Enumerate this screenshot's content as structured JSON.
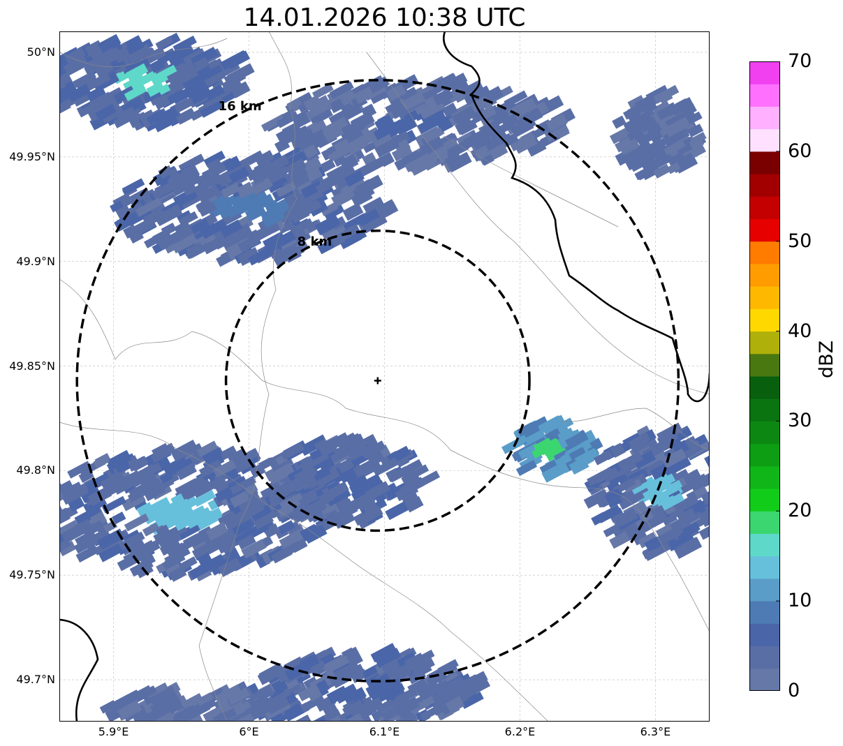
{
  "title": "14.01.2026 10:38 UTC",
  "map": {
    "lon_range": [
      5.86,
      6.34
    ],
    "lat_range": [
      49.68,
      50.01
    ],
    "center": {
      "lon": 6.095,
      "lat": 49.843
    },
    "rings": [
      {
        "label": "8 km",
        "radius_lon": 0.112,
        "radius_lat": 0.0717
      },
      {
        "label": "16 km",
        "radius_lon": 0.222,
        "radius_lat": 0.1437
      }
    ],
    "lat_ticks": [
      {
        "value": 49.7,
        "label": "49.7°N"
      },
      {
        "value": 49.75,
        "label": "49.75°N"
      },
      {
        "value": 49.8,
        "label": "49.8°N"
      },
      {
        "value": 49.85,
        "label": "49.85°N"
      },
      {
        "value": 49.9,
        "label": "49.9°N"
      },
      {
        "value": 49.95,
        "label": "49.95°N"
      },
      {
        "value": 50.0,
        "label": "50°N"
      }
    ],
    "lon_ticks": [
      {
        "value": 5.9,
        "label": "5.9°E"
      },
      {
        "value": 6.0,
        "label": "6°E"
      },
      {
        "value": 6.1,
        "label": "6.1°E"
      },
      {
        "value": 6.2,
        "label": "6.2°E"
      },
      {
        "value": 6.3,
        "label": "6.3°E"
      }
    ],
    "grid": true,
    "echo_clusters": [
      {
        "lon": 5.92,
        "lat": 49.985,
        "dlon": 0.08,
        "dlat": 0.02,
        "dbz": 5,
        "core_dbz": 17
      },
      {
        "lon": 6.12,
        "lat": 49.965,
        "dlon": 0.11,
        "dlat": 0.02,
        "dbz": 3,
        "core_dbz": 7
      },
      {
        "lon": 6.0,
        "lat": 49.925,
        "dlon": 0.1,
        "dlat": 0.025,
        "dbz": 4,
        "core_dbz": 8
      },
      {
        "lon": 6.3,
        "lat": 49.96,
        "dlon": 0.03,
        "dlat": 0.02,
        "dbz": 3,
        "core_dbz": 3
      },
      {
        "lon": 5.95,
        "lat": 49.78,
        "dlon": 0.11,
        "dlat": 0.03,
        "dbz": 4,
        "core_dbz": 14
      },
      {
        "lon": 6.07,
        "lat": 49.795,
        "dlon": 0.06,
        "dlat": 0.02,
        "dbz": 4,
        "core_dbz": 6
      },
      {
        "lon": 6.22,
        "lat": 49.81,
        "dlon": 0.03,
        "dlat": 0.012,
        "dbz": 10,
        "core_dbz": 19
      },
      {
        "lon": 6.3,
        "lat": 49.79,
        "dlon": 0.05,
        "dlat": 0.03,
        "dbz": 4,
        "core_dbz": 14
      },
      {
        "lon": 6.08,
        "lat": 49.695,
        "dlon": 0.09,
        "dlat": 0.018,
        "dbz": 4,
        "core_dbz": 7
      },
      {
        "lon": 5.95,
        "lat": 49.685,
        "dlon": 0.06,
        "dlat": 0.01,
        "dbz": 3,
        "core_dbz": 3
      }
    ]
  },
  "colorbar": {
    "title": "dBZ",
    "min": 0,
    "max": 70,
    "step": 2.5,
    "tick_labels": [
      "0",
      "10",
      "20",
      "30",
      "40",
      "50",
      "60",
      "70"
    ],
    "tick_values": [
      0,
      10,
      20,
      30,
      40,
      50,
      60,
      70
    ],
    "colors": [
      "#6678a8",
      "#5a6ea6",
      "#4a66a8",
      "#4e7bb4",
      "#5a9dc8",
      "#66c0dc",
      "#5ed8c8",
      "#3cd670",
      "#12cc1a",
      "#10b618",
      "#0e9e14",
      "#0c8812",
      "#0a7410",
      "#08600e",
      "#4a7810",
      "#b0b00a",
      "#ffd800",
      "#ffb800",
      "#ff9c00",
      "#ff7c00",
      "#e60000",
      "#c40000",
      "#a20000",
      "#7a0000",
      "#ffe0ff",
      "#ffb0ff",
      "#ff70ff",
      "#f040f0"
    ]
  }
}
